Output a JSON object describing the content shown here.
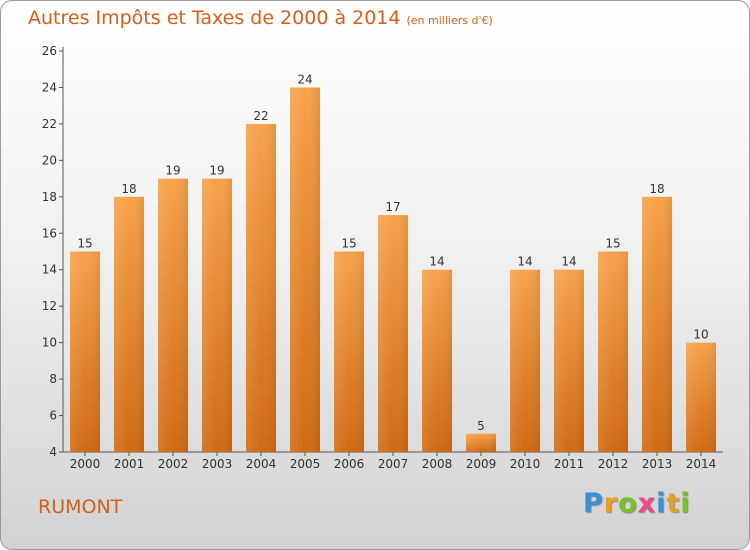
{
  "title": "Autres Impôts et Taxes de 2000 à 2014",
  "unit": "(en milliers d'€)",
  "commune": "RUMONT",
  "logo": {
    "letters": [
      "P",
      "r",
      "o",
      "x",
      "i",
      "t",
      "i"
    ],
    "colors": [
      "#3a8fd8",
      "#e8a020",
      "#7bbf2a",
      "#e84a8a",
      "#3a8fd8",
      "#e8a020",
      "#7bbf2a"
    ]
  },
  "colors": {
    "bar": "#f2922f",
    "bar_dark": "#d96f14",
    "text_accent": "#d2601a"
  },
  "chart_data": {
    "type": "bar",
    "categories": [
      "2000",
      "2001",
      "2002",
      "2003",
      "2004",
      "2005",
      "2006",
      "2007",
      "2008",
      "2009",
      "2010",
      "2011",
      "2012",
      "2013",
      "2014"
    ],
    "values": [
      15,
      18,
      19,
      19,
      22,
      24,
      15,
      17,
      14,
      5,
      14,
      14,
      15,
      18,
      10
    ],
    "ylim": [
      4,
      26
    ],
    "yticks": [
      4,
      6,
      8,
      10,
      12,
      14,
      16,
      18,
      20,
      22,
      24,
      26
    ],
    "grid": false,
    "legend": "none"
  }
}
